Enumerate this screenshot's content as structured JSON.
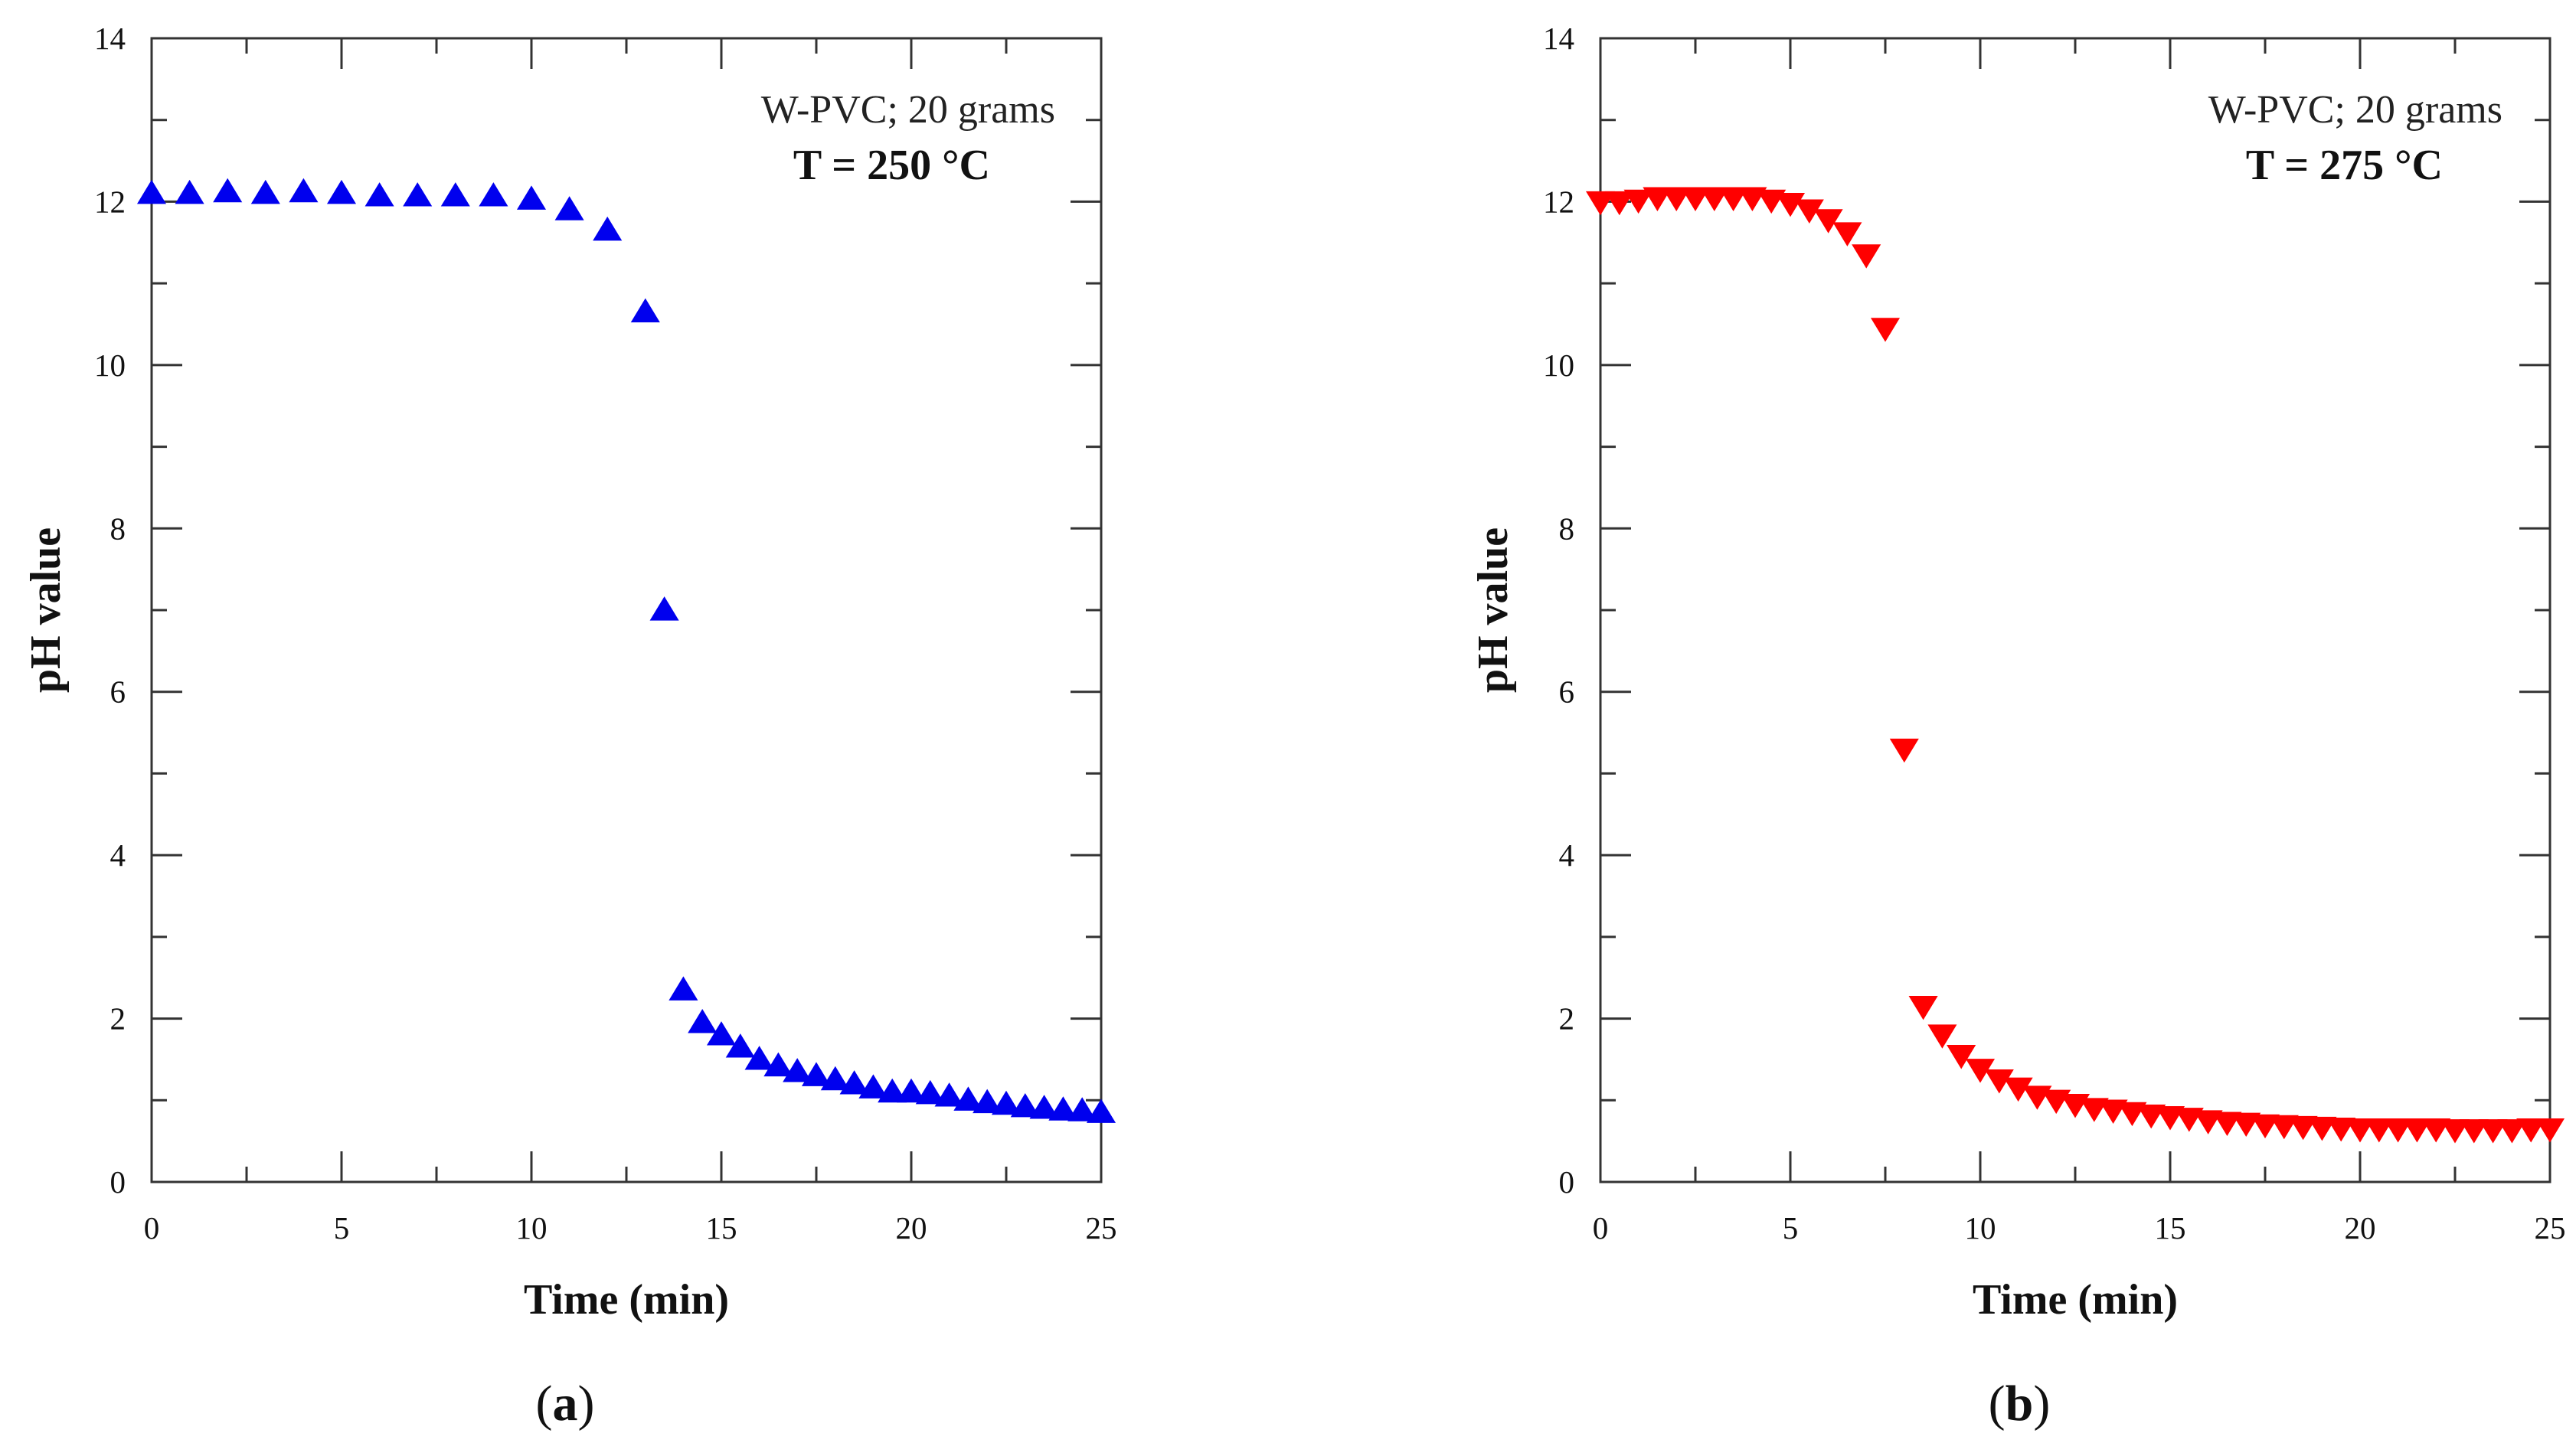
{
  "chart_data": [
    {
      "type": "scatter",
      "panel_label_open": "(",
      "panel_label_letter": "a",
      "panel_label_close": ")",
      "xlabel": "Time (min)",
      "ylabel": "pH value",
      "xlim": [
        0,
        25
      ],
      "ylim": [
        0,
        14
      ],
      "xticks": [
        0,
        5,
        10,
        15,
        20,
        25
      ],
      "yticks": [
        0,
        2,
        4,
        6,
        8,
        10,
        12,
        14
      ],
      "annotation_line1": "W-PVC; 20 grams",
      "annotation_line2": "T = 250 °C",
      "marker": "triangle-up",
      "color": "#0000ee",
      "series": [
        {
          "name": "T = 250 °C",
          "x": [
            0,
            1,
            2,
            3,
            4,
            5,
            6,
            7,
            8,
            9,
            10,
            11,
            12,
            13,
            13.5,
            14,
            14.5,
            15,
            15.5,
            16,
            16.5,
            17,
            17.5,
            18,
            18.5,
            19,
            19.5,
            20,
            20.5,
            21,
            21.5,
            22,
            22.5,
            23,
            23.5,
            24,
            24.5,
            25
          ],
          "y": [
            12.1,
            12.1,
            12.12,
            12.1,
            12.12,
            12.1,
            12.07,
            12.07,
            12.07,
            12.07,
            12.03,
            11.9,
            11.65,
            10.65,
            7.0,
            2.35,
            1.95,
            1.8,
            1.65,
            1.5,
            1.42,
            1.35,
            1.3,
            1.25,
            1.2,
            1.15,
            1.1,
            1.1,
            1.08,
            1.05,
            1.0,
            0.97,
            0.95,
            0.92,
            0.9,
            0.88,
            0.87,
            0.85
          ]
        }
      ]
    },
    {
      "type": "scatter",
      "panel_label_open": "(",
      "panel_label_letter": "b",
      "panel_label_close": ")",
      "xlabel": "Time (min)",
      "ylabel": "pH value",
      "xlim": [
        0,
        25
      ],
      "ylim": [
        0,
        14
      ],
      "xticks": [
        0,
        5,
        10,
        15,
        20,
        25
      ],
      "yticks": [
        0,
        2,
        4,
        6,
        8,
        10,
        12,
        14
      ],
      "annotation_line1": "W-PVC; 20 grams",
      "annotation_line2": "T = 275 °C",
      "marker": "triangle-down",
      "color": "#ff0000",
      "series": [
        {
          "name": "T = 275 °C",
          "x": [
            0,
            0.5,
            1,
            1.5,
            2,
            2.5,
            3,
            3.5,
            4,
            4.5,
            5,
            5.5,
            6,
            6.5,
            7,
            7.5,
            8,
            8.5,
            9,
            9.5,
            10,
            10.5,
            11,
            11.5,
            12,
            12.5,
            13,
            13.5,
            14,
            14.5,
            15,
            15.5,
            16,
            16.5,
            17,
            17.5,
            18,
            18.5,
            19,
            19.5,
            20,
            20.5,
            21,
            21.5,
            22,
            22.5,
            23,
            23.5,
            24,
            24.5,
            25
          ],
          "y": [
            12.0,
            12.0,
            12.02,
            12.05,
            12.05,
            12.05,
            12.05,
            12.05,
            12.05,
            12.02,
            11.98,
            11.9,
            11.78,
            11.62,
            11.35,
            10.45,
            5.3,
            2.15,
            1.8,
            1.55,
            1.38,
            1.25,
            1.15,
            1.05,
            1.0,
            0.95,
            0.9,
            0.88,
            0.85,
            0.82,
            0.8,
            0.78,
            0.75,
            0.73,
            0.72,
            0.7,
            0.69,
            0.68,
            0.67,
            0.66,
            0.65,
            0.65,
            0.65,
            0.65,
            0.65,
            0.64,
            0.64,
            0.64,
            0.64,
            0.65,
            0.65
          ]
        }
      ]
    }
  ]
}
